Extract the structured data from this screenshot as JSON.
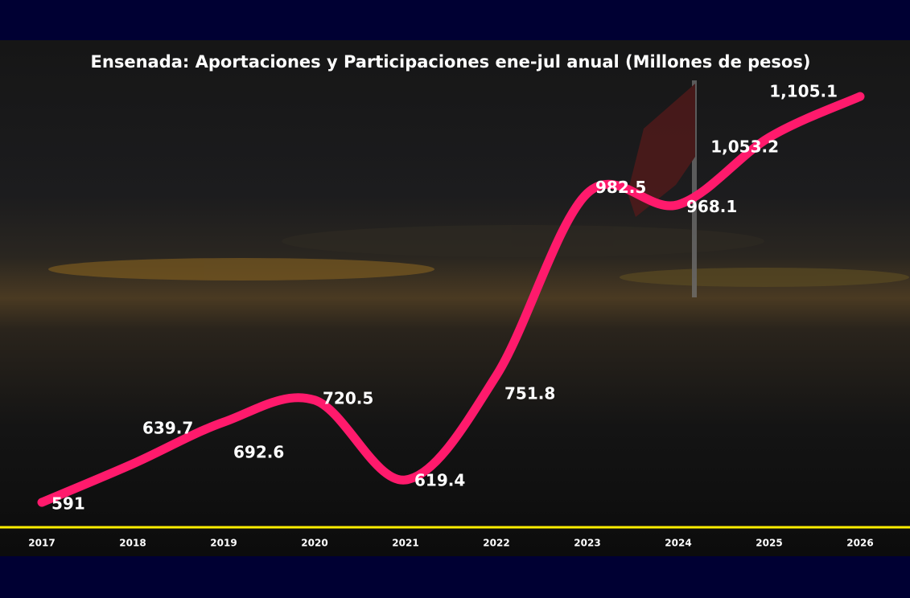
{
  "chart_data": {
    "type": "line",
    "title": "Ensenada: Aportaciones y Participaciones ene-jul anual (Millones de pesos)",
    "categories": [
      "2017",
      "2018",
      "2019",
      "2020",
      "2021",
      "2022",
      "2023",
      "2024",
      "2025",
      "2026"
    ],
    "values": [
      591,
      639.7,
      692.6,
      720.5,
      619.4,
      751.8,
      982.5,
      968.1,
      1053.2,
      1105.1
    ],
    "value_labels": [
      "591",
      "639.7",
      "692.6",
      "720.5",
      "619.4",
      "751.8",
      "982.5",
      "968.1",
      "1,053.2",
      "1,105.1"
    ],
    "color": "#ff1a6c",
    "smooth": true
  }
}
